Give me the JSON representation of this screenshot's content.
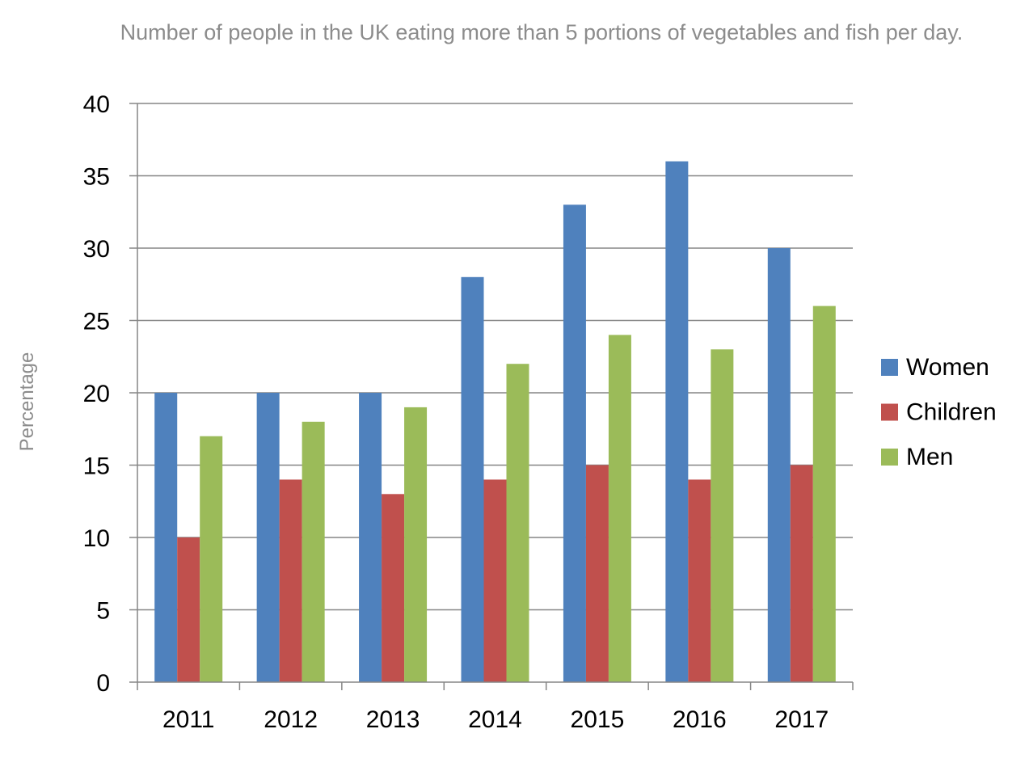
{
  "chart_data": {
    "type": "bar",
    "title": "Number of people in the UK eating more than 5 portions of vegetables and fish per day.",
    "xlabel": "",
    "ylabel": "Percentage",
    "categories": [
      "2011",
      "2012",
      "2013",
      "2014",
      "2015",
      "2016",
      "2017"
    ],
    "series": [
      {
        "name": "Women",
        "color": "#4f81bd",
        "values": [
          20,
          20,
          20,
          28,
          33,
          36,
          30
        ]
      },
      {
        "name": "Children",
        "color": "#c0504d",
        "values": [
          10,
          14,
          13,
          14,
          15,
          14,
          15
        ]
      },
      {
        "name": "Men",
        "color": "#9bbb59",
        "values": [
          17,
          18,
          19,
          22,
          24,
          23,
          26
        ]
      }
    ],
    "ylim": [
      0,
      40
    ],
    "yticks": [
      "0",
      "5",
      "10",
      "15",
      "20",
      "25",
      "30",
      "35",
      "40"
    ],
    "grid": true,
    "legend_position": "right"
  }
}
